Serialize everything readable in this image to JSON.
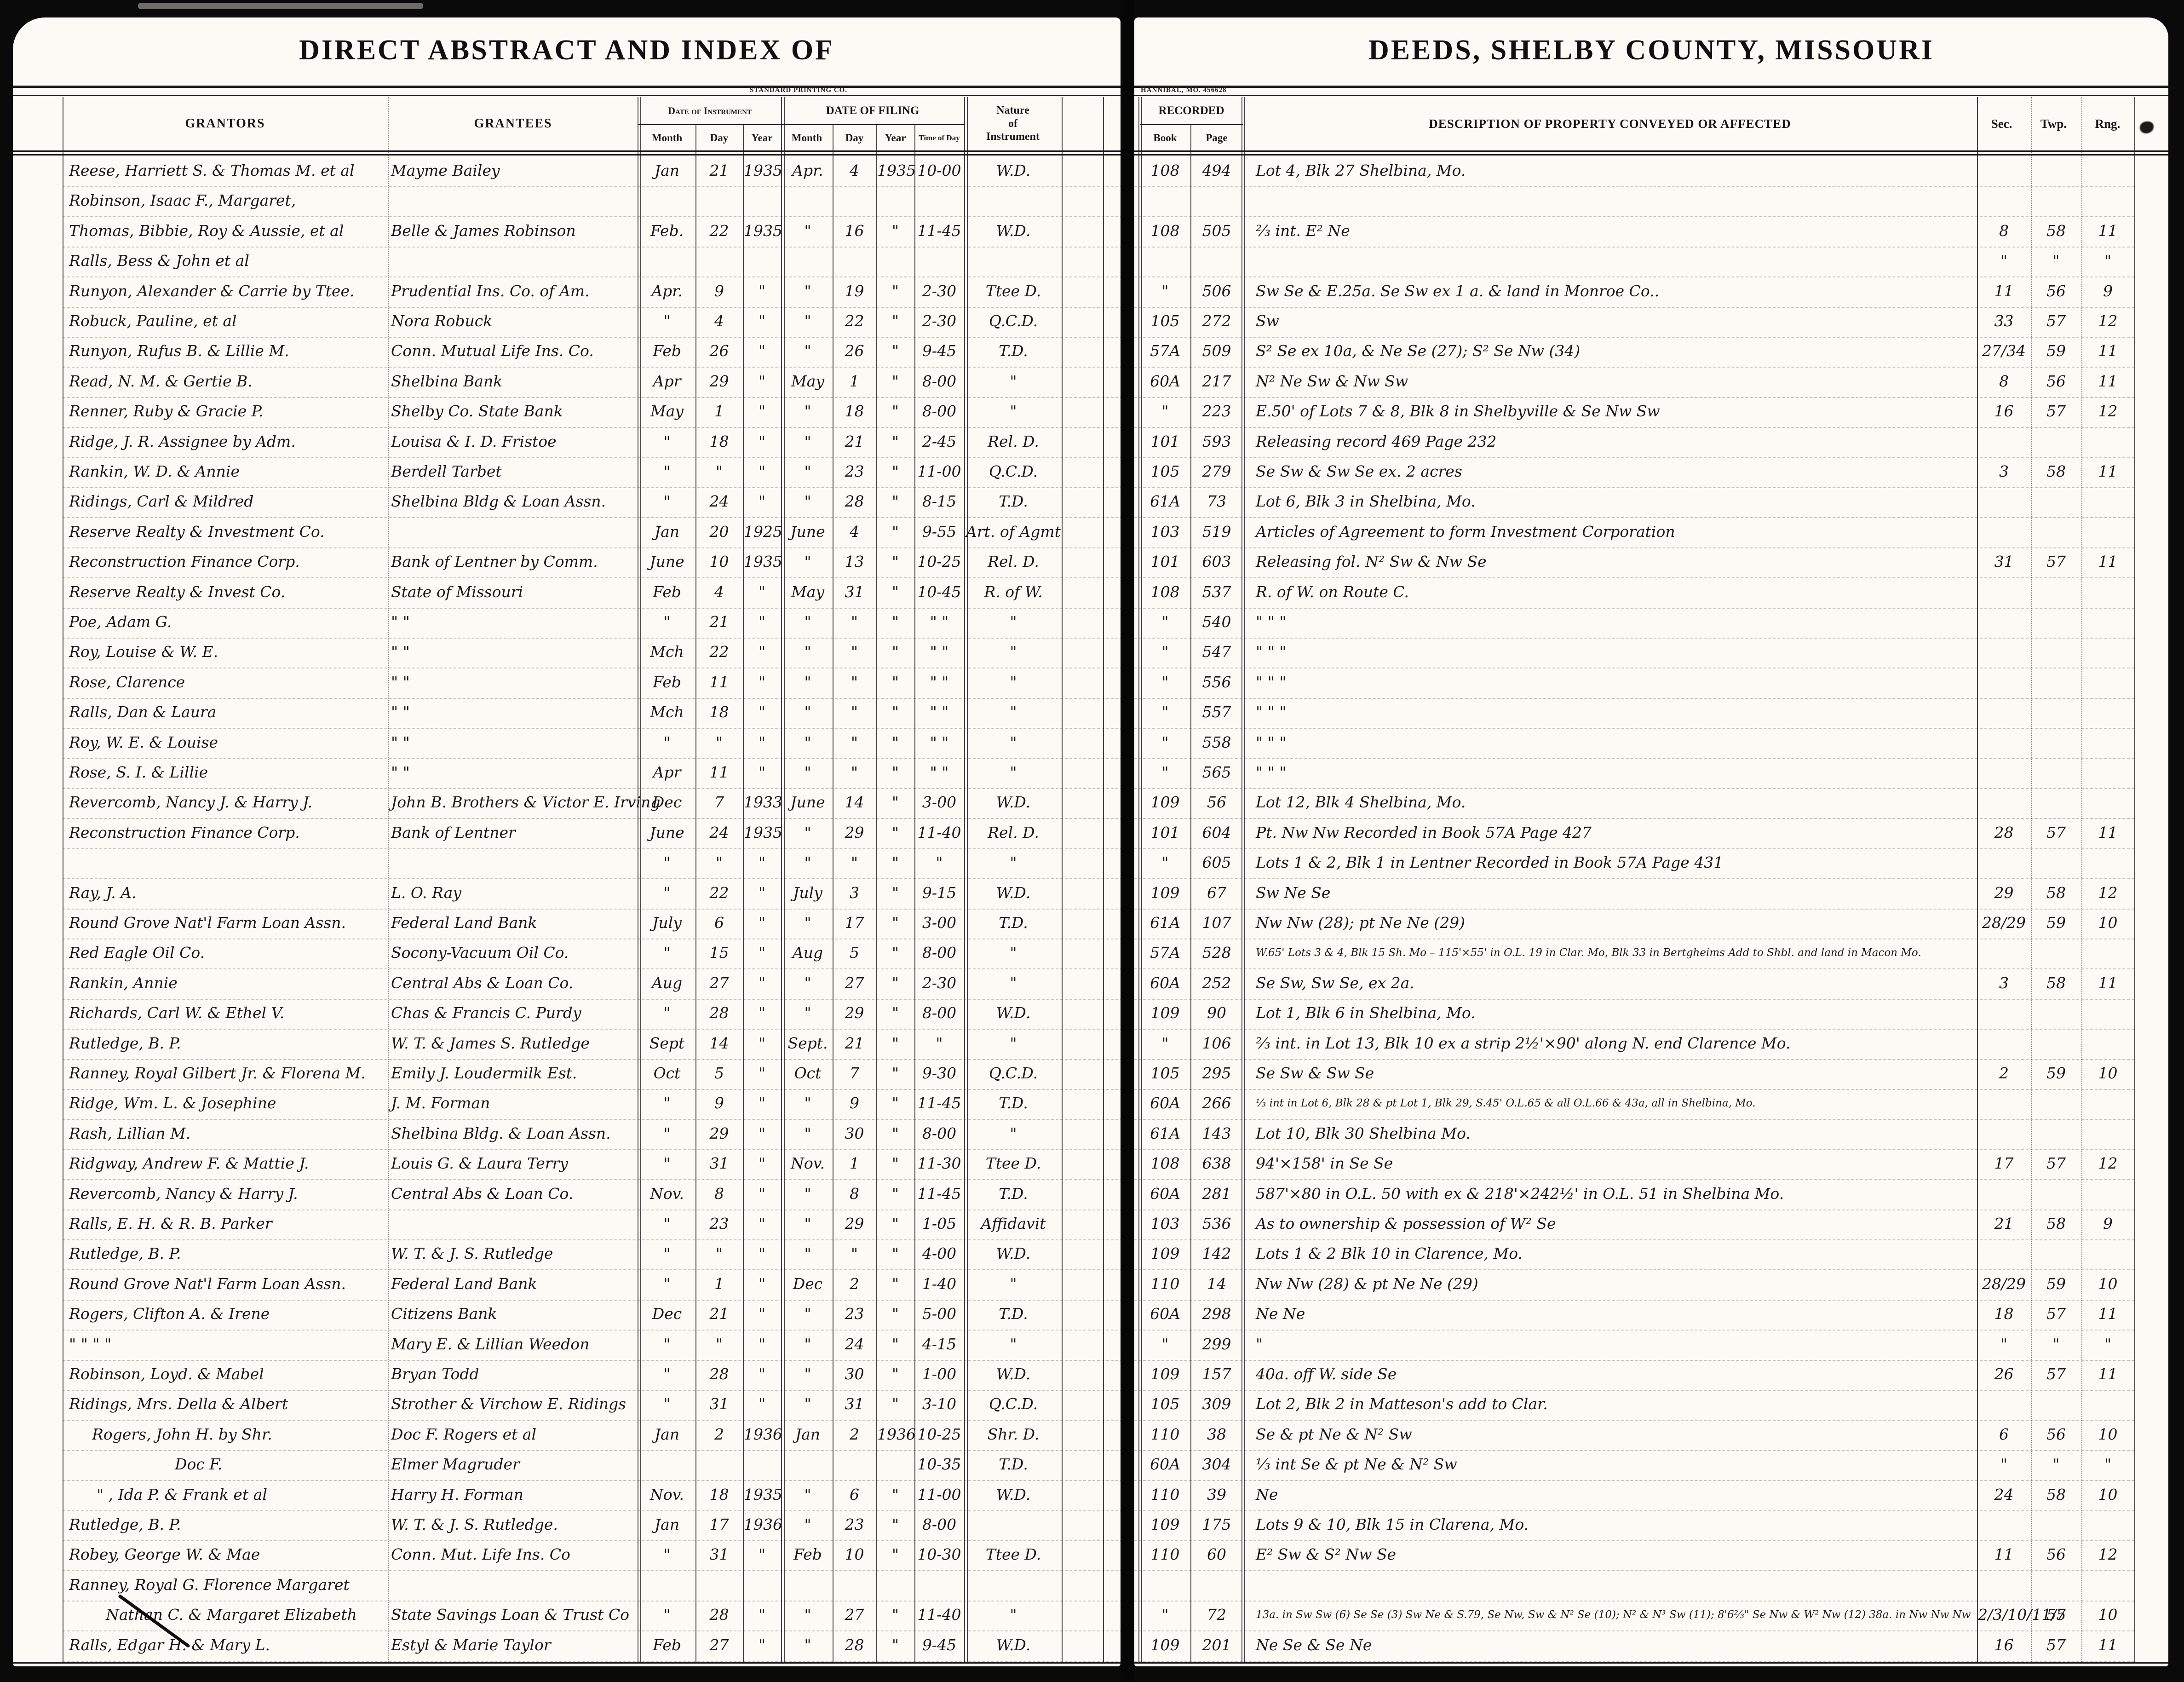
{
  "header": {
    "left_title": "DIRECT ABSTRACT AND INDEX OF",
    "right_title": "DEEDS, SHELBY COUNTY, MISSOURI",
    "printer_left": "STANDARD PRINTING CO.",
    "printer_right": "HANNIBAL, MO. 456628",
    "grantors": "GRANTORS",
    "grantees": "GRANTEES",
    "date_of_instrument": "Date of Instrument",
    "date_of_filing": "DATE OF FILING",
    "month": "Month",
    "day": "Day",
    "year": "Year",
    "time_of_day": "Time of Day",
    "nature1": "Nature",
    "nature2": "of",
    "nature3": "Instrument",
    "recorded": "RECORDED",
    "book": "Book",
    "page": "Page",
    "description": "DESCRIPTION OF PROPERTY CONVEYED OR AFFECTED",
    "sec": "Sec.",
    "twp": "Twp.",
    "rng": "Rng."
  },
  "rows": [
    {
      "g": "Reese, Harriett S. & Thomas M. et al",
      "e": "Mayme Bailey",
      "im": "Jan",
      "id": "21",
      "iy": "1935",
      "fm": "Apr.",
      "fd": "4",
      "fy": "1935",
      "t": "10-00",
      "n": "W.D.",
      "bk": "108",
      "pg": "494",
      "d": "Lot 4,  Blk 27   Shelbina, Mo."
    },
    {
      "g": "Robinson, Isaac F., Margaret,"
    },
    {
      "g": "Thomas, Bibbie, Roy & Aussie, et al",
      "e": "Belle & James Robinson",
      "im": "Feb.",
      "id": "22",
      "iy": "1935",
      "fm": "\"",
      "fd": "16",
      "fy": "\"",
      "t": "11-45",
      "n": "W.D.",
      "bk": "108",
      "pg": "505",
      "d": "⅔ int.  E²  Ne",
      "s": "8",
      "tw": "58",
      "r": "11"
    },
    {
      "g": "Ralls, Bess & John   et al",
      "s": "\"",
      "tw": "\"",
      "r": "\""
    },
    {
      "g": "Runyon, Alexander & Carrie by Ttee.",
      "e": "Prudential Ins. Co. of Am.",
      "im": "Apr.",
      "id": "9",
      "iy": "\"",
      "fm": "\"",
      "fd": "19",
      "fy": "\"",
      "t": "2-30",
      "n": "Ttee D.",
      "bk": "\"",
      "pg": "506",
      "d": "Sw Se & E.25a. Se Sw  ex 1 a.    & land in Monroe Co..",
      "s": "11",
      "tw": "56",
      "r": "9"
    },
    {
      "g": "Robuck, Pauline, et al",
      "e": "Nora Robuck",
      "im": "\"",
      "id": "4",
      "iy": "\"",
      "fm": "\"",
      "fd": "22",
      "fy": "\"",
      "t": "2-30",
      "n": "Q.C.D.",
      "bk": "105",
      "pg": "272",
      "d": "Sw",
      "s": "33",
      "tw": "57",
      "r": "12"
    },
    {
      "g": "Runyon, Rufus B. & Lillie M.",
      "e": "Conn. Mutual Life Ins. Co.",
      "im": "Feb",
      "id": "26",
      "iy": "\"",
      "fm": "\"",
      "fd": "26",
      "fy": "\"",
      "t": "9-45",
      "n": "T.D.",
      "bk": "57A",
      "pg": "509",
      "d": "S² Se ex 10a, & Ne Se (27);  S² Se Nw (34)",
      "s": "27/34",
      "tw": "59",
      "r": "11"
    },
    {
      "g": "Read, N. M. & Gertie B.",
      "e": "Shelbina Bank",
      "im": "Apr",
      "id": "29",
      "iy": "\"",
      "fm": "May",
      "fd": "1",
      "fy": "\"",
      "t": "8-00",
      "n": "\"",
      "bk": "60A",
      "pg": "217",
      "d": "N² Ne Sw  &  Nw Sw",
      "s": "8",
      "tw": "56",
      "r": "11"
    },
    {
      "g": "Renner, Ruby & Gracie P.",
      "e": "Shelby Co. State Bank",
      "im": "May",
      "id": "1",
      "iy": "\"",
      "fm": "\"",
      "fd": "18",
      "fy": "\"",
      "t": "8-00",
      "n": "\"",
      "bk": "\"",
      "pg": "223",
      "d": "E.50' of Lots 7 & 8,  Blk 8 in Shelbyville  &  Se Nw Sw",
      "s": "16",
      "tw": "57",
      "r": "12"
    },
    {
      "g": "Ridge, J. R. Assignee by Adm.",
      "e": "Louisa & I. D. Fristoe",
      "im": "\"",
      "id": "18",
      "iy": "\"",
      "fm": "\"",
      "fd": "21",
      "fy": "\"",
      "t": "2-45",
      "n": "Rel. D.",
      "bk": "101",
      "pg": "593",
      "d": "Releasing record 469   Page 232"
    },
    {
      "g": "Rankin, W. D. & Annie",
      "e": "Berdell Tarbet",
      "im": "\"",
      "id": "\"",
      "iy": "\"",
      "fm": "\"",
      "fd": "23",
      "fy": "\"",
      "t": "11-00",
      "n": "Q.C.D.",
      "bk": "105",
      "pg": "279",
      "d": "Se Sw & Sw Se    ex.  2 acres",
      "s": "3",
      "tw": "58",
      "r": "11"
    },
    {
      "g": "Ridings, Carl & Mildred",
      "e": "Shelbina Bldg & Loan Assn.",
      "im": "\"",
      "id": "24",
      "iy": "\"",
      "fm": "\"",
      "fd": "28",
      "fy": "\"",
      "t": "8-15",
      "n": "T.D.",
      "bk": "61A",
      "pg": "73",
      "d": "Lot 6,  Blk 3 in Shelbina, Mo."
    },
    {
      "g": "Reserve Realty & Investment Co.",
      "im": "Jan",
      "id": "20",
      "iy": "1925",
      "fm": "June",
      "fd": "4",
      "fy": "\"",
      "t": "9-55",
      "n": "Art. of Agmt",
      "bk": "103",
      "pg": "519",
      "d": "Articles of Agreement to form Investment Corporation"
    },
    {
      "g": "Reconstruction Finance Corp.",
      "e": "Bank of Lentner   by Comm.",
      "im": "June",
      "id": "10",
      "iy": "1935",
      "fm": "\"",
      "fd": "13",
      "fy": "\"",
      "t": "10-25",
      "n": "Rel. D.",
      "bk": "101",
      "pg": "603",
      "d": "Releasing fol. N² Sw  &  Nw Se",
      "s": "31",
      "tw": "57",
      "r": "11"
    },
    {
      "g": "Reserve Realty & Invest Co.",
      "e": "State of Missouri",
      "im": "Feb",
      "id": "4",
      "iy": "\"",
      "fm": "May",
      "fd": "31",
      "fy": "\"",
      "t": "10-45",
      "n": "R. of W.",
      "bk": "108",
      "pg": "537",
      "d": "R. of W.   on  Route C."
    },
    {
      "g": "Poe, Adam G.",
      "e": "\"        \"",
      "im": "\"",
      "id": "21",
      "iy": "\"",
      "fm": "\"",
      "fd": "\"",
      "fy": "\"",
      "t": "\"  \"",
      "n": "\"",
      "bk": "\"",
      "pg": "540",
      "d": "\"      \"      \""
    },
    {
      "g": "Roy, Louise & W. E.",
      "e": "\"        \"",
      "im": "Mch",
      "id": "22",
      "iy": "\"",
      "fm": "\"",
      "fd": "\"",
      "fy": "\"",
      "t": "\"  \"",
      "n": "\"",
      "bk": "\"",
      "pg": "547",
      "d": "\"      \"      \""
    },
    {
      "g": "Rose, Clarence",
      "e": "\"        \"",
      "im": "Feb",
      "id": "11",
      "iy": "\"",
      "fm": "\"",
      "fd": "\"",
      "fy": "\"",
      "t": "\"  \"",
      "n": "\"",
      "bk": "\"",
      "pg": "556",
      "d": "\"      \"      \""
    },
    {
      "g": "Ralls, Dan & Laura",
      "e": "\"        \"",
      "im": "Mch",
      "id": "18",
      "iy": "\"",
      "fm": "\"",
      "fd": "\"",
      "fy": "\"",
      "t": "\"  \"",
      "n": "\"",
      "bk": "\"",
      "pg": "557",
      "d": "\"      \"      \""
    },
    {
      "g": "Roy, W. E. & Louise",
      "e": "\"        \"",
      "im": "\"",
      "id": "\"",
      "iy": "\"",
      "fm": "\"",
      "fd": "\"",
      "fy": "\"",
      "t": "\"  \"",
      "n": "\"",
      "bk": "\"",
      "pg": "558",
      "d": "\"      \"      \""
    },
    {
      "g": "Rose, S. I. & Lillie",
      "e": "\"        \"",
      "im": "Apr",
      "id": "11",
      "iy": "\"",
      "fm": "\"",
      "fd": "\"",
      "fy": "\"",
      "t": "\"  \"",
      "n": "\"",
      "bk": "\"",
      "pg": "565",
      "d": "\"      \"      \""
    },
    {
      "g": "Revercomb, Nancy J. & Harry J.",
      "e": "John B. Brothers & Victor E. Irving",
      "im": "Dec",
      "id": "7",
      "iy": "1933",
      "fm": "June",
      "fd": "14",
      "fy": "\"",
      "t": "3-00",
      "n": "W.D.",
      "bk": "109",
      "pg": "56",
      "d": "Lot 12,  Blk 4   Shelbina,  Mo."
    },
    {
      "g": "Reconstruction Finance Corp.",
      "e": "Bank of Lentner",
      "im": "June",
      "id": "24",
      "iy": "1935",
      "fm": "\"",
      "fd": "29",
      "fy": "\"",
      "t": "11-40",
      "n": "Rel. D.",
      "bk": "101",
      "pg": "604",
      "d": "Pt. Nw Nw        Recorded in Book 57A  Page 427",
      "s": "28",
      "tw": "57",
      "r": "11"
    },
    {
      "im": "\"",
      "id": "\"",
      "iy": "\"",
      "fm": "\"",
      "fd": "\"",
      "fy": "\"",
      "t": "\"",
      "n": "\"",
      "bk": "\"",
      "pg": "605",
      "d": "Lots 1 & 2, Blk 1 in Lentner     Recorded in Book 57A   Page 431"
    },
    {
      "g": "Ray, J. A.",
      "e": "L. O. Ray",
      "im": "\"",
      "id": "22",
      "iy": "\"",
      "fm": "July",
      "fd": "3",
      "fy": "\"",
      "t": "9-15",
      "n": "W.D.",
      "bk": "109",
      "pg": "67",
      "d": "Sw Ne Se",
      "s": "29",
      "tw": "58",
      "r": "12"
    },
    {
      "g": "Round Grove Nat'l Farm Loan Assn.",
      "e": "Federal Land Bank",
      "im": "July",
      "id": "6",
      "iy": "\"",
      "fm": "\"",
      "fd": "17",
      "fy": "\"",
      "t": "3-00",
      "n": "T.D.",
      "bk": "61A",
      "pg": "107",
      "d": "Nw Nw (28);  pt Ne Ne (29)",
      "s": "28/29",
      "tw": "59",
      "r": "10"
    },
    {
      "g": "Red Eagle Oil Co.",
      "e": "Socony-Vacuum Oil Co.",
      "im": "\"",
      "id": "15",
      "iy": "\"",
      "fm": "Aug",
      "fd": "5",
      "fy": "\"",
      "t": "8-00",
      "n": "\"",
      "bk": "57A",
      "pg": "528",
      "d": "W.65' Lots 3 & 4, Blk 15 Sh. Mo – 115'×55' in O.L. 19 in Clar. Mo,  Blk 33 in Bertgheims Add to Shbl.   and land in Macon Mo."
    },
    {
      "g": "Rankin,  Annie",
      "e": "Central Abs & Loan Co.",
      "im": "Aug",
      "id": "27",
      "iy": "\"",
      "fm": "\"",
      "fd": "27",
      "fy": "\"",
      "t": "2-30",
      "n": "\"",
      "bk": "60A",
      "pg": "252",
      "d": "Se Sw, Sw Se,    ex 2a.",
      "s": "3",
      "tw": "58",
      "r": "11"
    },
    {
      "g": "Richards, Carl W. & Ethel V.",
      "e": "Chas & Francis C. Purdy",
      "im": "\"",
      "id": "28",
      "iy": "\"",
      "fm": "\"",
      "fd": "29",
      "fy": "\"",
      "t": "8-00",
      "n": "W.D.",
      "bk": "109",
      "pg": "90",
      "d": "Lot 1,  Blk 6  in  Shelbina,  Mo."
    },
    {
      "g": "Rutledge,  B. P.",
      "e": "W. T. & James S. Rutledge",
      "im": "Sept",
      "id": "14",
      "iy": "\"",
      "fm": "Sept.",
      "fd": "21",
      "fy": "\"",
      "t": "\"",
      "n": "\"",
      "bk": "\"",
      "pg": "106",
      "d": "⅔ int. in Lot 13, Blk 10  ex a strip 2½'×90' along N. end     Clarence  Mo."
    },
    {
      "g": "Ranney, Royal Gilbert Jr. & Florena M.",
      "e": "Emily J. Loudermilk Est.",
      "im": "Oct",
      "id": "5",
      "iy": "\"",
      "fm": "Oct",
      "fd": "7",
      "fy": "\"",
      "t": "9-30",
      "n": "Q.C.D.",
      "bk": "105",
      "pg": "295",
      "d": "Se Sw & Sw Se",
      "s": "2",
      "tw": "59",
      "r": "10"
    },
    {
      "g": "Ridge, Wm. L. & Josephine",
      "e": "J. M. Forman",
      "im": "\"",
      "id": "9",
      "iy": "\"",
      "fm": "\"",
      "fd": "9",
      "fy": "\"",
      "t": "11-45",
      "n": "T.D.",
      "bk": "60A",
      "pg": "266",
      "d": "⅓ int in Lot 6, Blk 28 & pt Lot 1, Blk 29, S.45' O.L.65 & all O.L.66 & 43a,  all in Shelbina, Mo."
    },
    {
      "g": "Rash, Lillian M.",
      "e": "Shelbina Bldg. & Loan Assn.",
      "im": "\"",
      "id": "29",
      "iy": "\"",
      "fm": "\"",
      "fd": "30",
      "fy": "\"",
      "t": "8-00",
      "n": "\"",
      "bk": "61A",
      "pg": "143",
      "d": "Lot 10,  Blk 30    Shelbina  Mo."
    },
    {
      "g": "Ridgway, Andrew F. & Mattie J.",
      "e": "Louis G. & Laura Terry",
      "im": "\"",
      "id": "31",
      "iy": "\"",
      "fm": "Nov.",
      "fd": "1",
      "fy": "\"",
      "t": "11-30",
      "n": "Ttee D.",
      "bk": "108",
      "pg": "638",
      "d": "94'×158'  in Se Se",
      "s": "17",
      "tw": "57",
      "r": "12"
    },
    {
      "g": "Revercomb, Nancy & Harry J.",
      "e": "Central Abs & Loan Co.",
      "im": "Nov.",
      "id": "8",
      "iy": "\"",
      "fm": "\"",
      "fd": "8",
      "fy": "\"",
      "t": "11-45",
      "n": "T.D.",
      "bk": "60A",
      "pg": "281",
      "d": "587'×80 in O.L. 50 with ex  & 218'×242½' in O.L. 51 in  Shelbina  Mo."
    },
    {
      "g": "Ralls, E. H. & R. B. Parker",
      "im": "\"",
      "id": "23",
      "iy": "\"",
      "fm": "\"",
      "fd": "29",
      "fy": "\"",
      "t": "1-05",
      "n": "Affidavit",
      "bk": "103",
      "pg": "536",
      "d": "As to ownership & possession of  W² Se",
      "s": "21",
      "tw": "58",
      "r": "9"
    },
    {
      "g": "Rutledge,  B. P.",
      "e": "W. T. & J. S. Rutledge",
      "im": "\"",
      "id": "\"",
      "iy": "\"",
      "fm": "\"",
      "fd": "\"",
      "fy": "\"",
      "t": "4-00",
      "n": "W.D.",
      "bk": "109",
      "pg": "142",
      "d": "Lots 1 & 2  Blk 10  in  Clarence,  Mo."
    },
    {
      "g": "Round Grove Nat'l Farm Loan Assn.",
      "e": "Federal Land  Bank",
      "im": "\"",
      "id": "1",
      "iy": "\"",
      "fm": "Dec",
      "fd": "2",
      "fy": "\"",
      "t": "1-40",
      "n": "\"",
      "bk": "110",
      "pg": "14",
      "d": "Nw Nw (28) & pt  Ne Ne (29)",
      "s": "28/29",
      "tw": "59",
      "r": "10"
    },
    {
      "g": "Rogers, Clifton A. & Irene",
      "e": "Citizens Bank",
      "im": "Dec",
      "id": "21",
      "iy": "\"",
      "fm": "\"",
      "fd": "23",
      "fy": "\"",
      "t": "5-00",
      "n": "T.D.",
      "bk": "60A",
      "pg": "298",
      "d": "Ne Ne",
      "s": "18",
      "tw": "57",
      "r": "11"
    },
    {
      "g": "\"     \"     \"     \"",
      "e": "Mary E. & Lillian Weedon",
      "im": "\"",
      "id": "\"",
      "iy": "\"",
      "fm": "\"",
      "fd": "24",
      "fy": "\"",
      "t": "4-15",
      "n": "\"",
      "bk": "\"",
      "pg": "299",
      "d": "\"",
      "s": "\"",
      "tw": "\"",
      "r": "\""
    },
    {
      "g": "Robinson, Loyd. & Mabel",
      "e": "Bryan Todd",
      "im": "\"",
      "id": "28",
      "iy": "\"",
      "fm": "\"",
      "fd": "30",
      "fy": "\"",
      "t": "1-00",
      "n": "W.D.",
      "bk": "109",
      "pg": "157",
      "d": "40a. off  W. side Se",
      "s": "26",
      "tw": "57",
      "r": "11"
    },
    {
      "g": "Ridings, Mrs. Della & Albert",
      "e": "Strother & Virchow E. Ridings",
      "im": "\"",
      "id": "31",
      "iy": "\"",
      "fm": "\"",
      "fd": "31",
      "fy": "\"",
      "t": "3-10",
      "n": "Q.C.D.",
      "bk": "105",
      "pg": "309",
      "d": "Lot 2, Blk 2  in  Matteson's  add  to  Clar."
    },
    {
      "g": "Rogers,   John H. by Shr.",
      "e": "Doc F. Rogers et al",
      "im": "Jan",
      "id": "2",
      "iy": "1936",
      "fm": "Jan",
      "fd": "2",
      "fy": "1936",
      "t": "10-25",
      "n": "Shr. D.",
      "bk": "110",
      "pg": "38",
      "d": "Se & pt Ne  &  N² Sw",
      "s": "6",
      "tw": "56",
      "r": "10",
      "ind": 50
    },
    {
      "g": "Doc F.",
      "e": "Elmer Magruder",
      "t": "10-35",
      "n": "T.D.",
      "bk": "60A",
      "pg": "304",
      "d": "⅓ int Se & pt  Ne  &  N² Sw",
      "s": "\"",
      "tw": "\"",
      "r": "\"",
      "ind": 230
    },
    {
      "g": "\" ,  Ida P. & Frank et al",
      "e": "Harry H. Forman",
      "im": "Nov.",
      "id": "18",
      "iy": "1935",
      "fm": "\"",
      "fd": "6",
      "fy": "\"",
      "t": "11-00",
      "n": "W.D.",
      "bk": "110",
      "pg": "39",
      "d": "Ne",
      "s": "24",
      "tw": "58",
      "r": "10",
      "ind": 60
    },
    {
      "g": "Rutledge,  B. P.",
      "e": "W. T. & J. S. Rutledge.",
      "im": "Jan",
      "id": "17",
      "iy": "1936",
      "fm": "\"",
      "fd": "23",
      "fy": "\"",
      "t": "8-00",
      "bk": "109",
      "pg": "175",
      "d": "Lots 9 & 10,  Blk 15   in Clarena, Mo."
    },
    {
      "g": "Robey, George W. & Mae",
      "e": "Conn. Mut. Life Ins. Co",
      "im": "\"",
      "id": "31",
      "iy": "\"",
      "fm": "Feb",
      "fd": "10",
      "fy": "\"",
      "t": "10-30",
      "n": "Ttee D.",
      "bk": "110",
      "pg": "60",
      "d": "E² Sw  &  S² Nw Se",
      "s": "11",
      "tw": "56",
      "r": "12"
    },
    {
      "g": "Ranney, Royal G. Florence Margaret"
    },
    {
      "g": "Nathan C. & Margaret Elizabeth",
      "e": "State Savings Loan & Trust Co",
      "im": "\"",
      "id": "28",
      "iy": "\"",
      "fm": "\"",
      "fd": "27",
      "fy": "\"",
      "t": "11-40",
      "n": "\"",
      "bk": "\"",
      "pg": "72",
      "d": "13a. in Sw Sw (6) Se Se (3) Sw Ne & S.79, Se Nw, Sw & N² Se (10); N² & N³ Sw (11); 8'6⅔\" Se Nw & W² Nw (12) 38a. in Nw Nw Nw",
      "s": "2/3/10/11/5",
      "tw": "57",
      "r": "10",
      "ind": 80
    },
    {
      "g": "Ralls, Edgar H. & Mary L.",
      "e": "Estyl & Marie Taylor",
      "im": "Feb",
      "id": "27",
      "iy": "\"",
      "fm": "\"",
      "fd": "28",
      "fy": "\"",
      "t": "9-45",
      "n": "W.D.",
      "bk": "109",
      "pg": "201",
      "d": "Ne Se  &  Se Ne",
      "s": "16",
      "tw": "57",
      "r": "11"
    }
  ]
}
